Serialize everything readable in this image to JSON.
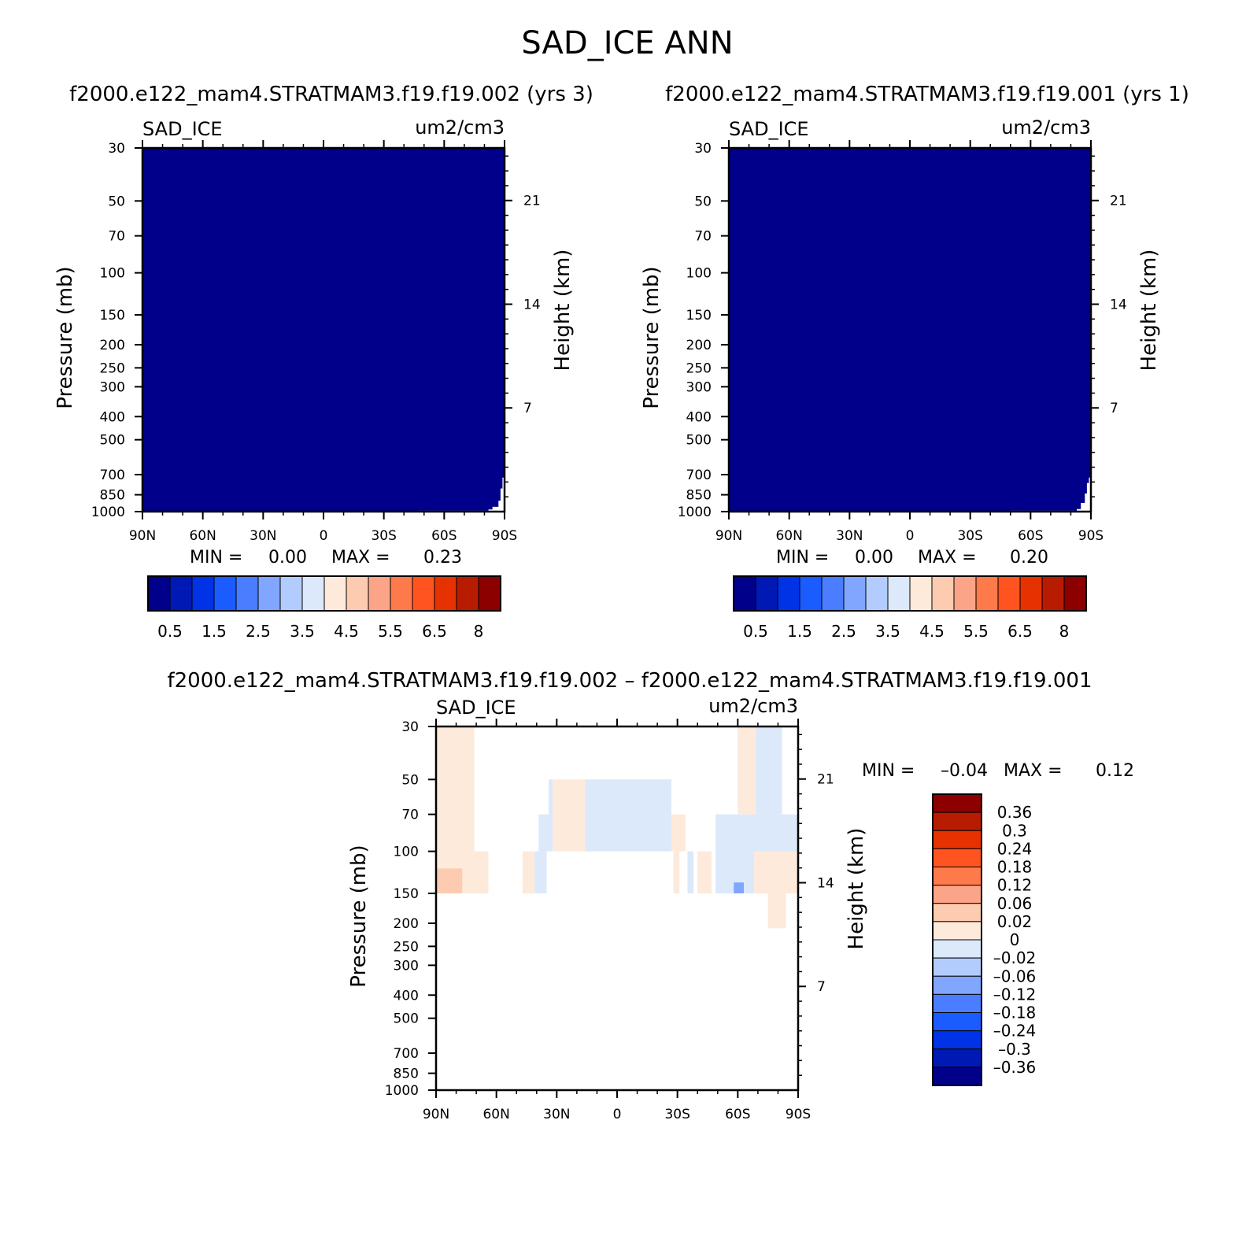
{
  "figure": {
    "title": "SAD_ICE ANN",
    "panel_titles": {
      "left": "f2000.e122_mam4.STRATMAM3.f19.f19.002 (yrs 3)",
      "right": "f2000.e122_mam4.STRATMAM3.f19.f19.001 (yrs 1)",
      "diff": "f2000.e122_mam4.STRATMAM3.f19.f19.002 – f2000.e122_mam4.STRATMAM3.f19.f19.001"
    }
  },
  "colors": {
    "abs_palette": [
      "#00008a",
      "#0019b5",
      "#0033e6",
      "#1a5cff",
      "#4a7dff",
      "#80a6ff",
      "#b3ccff",
      "#dbe9fb",
      "#fdeadb",
      "#fdcbb0",
      "#fca487",
      "#ff7a4a",
      "#ff5420",
      "#e63200",
      "#b81c00",
      "#8c0000"
    ],
    "diff_palette": [
      "#00008a",
      "#0019b5",
      "#0033e6",
      "#1a5cff",
      "#4a7dff",
      "#80a6ff",
      "#b3ccff",
      "#dbe9fb",
      "#fdeadb",
      "#fdcbb0",
      "#fca487",
      "#ff7a4a",
      "#ff5420",
      "#e63200",
      "#b81c00",
      "#8c0000"
    ]
  },
  "chart_data": [
    {
      "type": "heatmap",
      "id": "panel-left",
      "title": "f2000.e122_mam4.STRATMAM3.f19.f19.002 (yrs 3)",
      "label_left": "SAD_ICE",
      "label_right": "um2/cm3",
      "xlabel": "",
      "ylabel": "Pressure (mb)",
      "ylabel_right": "Height (km)",
      "x_ticks": [
        "90N",
        "60N",
        "30N",
        "0",
        "30S",
        "60S",
        "90S"
      ],
      "y_ticks": [
        30,
        50,
        70,
        100,
        150,
        200,
        250,
        300,
        400,
        500,
        700,
        850,
        1000
      ],
      "y_right_ticks": [
        21,
        14,
        7
      ],
      "ylim": [
        1000,
        30
      ],
      "y_scale": "log",
      "min_label": "MIN =",
      "min_value": "0.00",
      "max_label": "MAX =",
      "max_value": "0.23",
      "colorbar_labels": [
        "0.5",
        "1.5",
        "2.5",
        "3.5",
        "4.5",
        "5.5",
        "6.5",
        "8"
      ],
      "field_fill": "#00008a",
      "white_gap_boundary": [
        [
          47,
          1000
        ],
        [
          47,
          992
        ],
        [
          82,
          992
        ],
        [
          82,
          980
        ],
        [
          84,
          980
        ],
        [
          84,
          955
        ],
        [
          87,
          955
        ],
        [
          87,
          900
        ],
        [
          88,
          900
        ],
        [
          88,
          800
        ],
        [
          89,
          800
        ],
        [
          89,
          720
        ],
        [
          90,
          720
        ]
      ]
    },
    {
      "type": "heatmap",
      "id": "panel-right",
      "title": "f2000.e122_mam4.STRATMAM3.f19.f19.001 (yrs 1)",
      "label_left": "SAD_ICE",
      "label_right": "um2/cm3",
      "xlabel": "",
      "ylabel": "Pressure (mb)",
      "ylabel_right": "Height (km)",
      "x_ticks": [
        "90N",
        "60N",
        "30N",
        "0",
        "30S",
        "60S",
        "90S"
      ],
      "y_ticks": [
        30,
        50,
        70,
        100,
        150,
        200,
        250,
        300,
        400,
        500,
        700,
        850,
        1000
      ],
      "y_right_ticks": [
        21,
        14,
        7
      ],
      "ylim": [
        1000,
        30
      ],
      "y_scale": "log",
      "min_label": "MIN =",
      "min_value": "0.00",
      "max_label": "MAX =",
      "max_value": "0.20",
      "colorbar_labels": [
        "0.5",
        "1.5",
        "2.5",
        "3.5",
        "4.5",
        "5.5",
        "6.5",
        "8"
      ],
      "field_fill": "#00008a",
      "white_gap_boundary": [
        [
          50,
          1000
        ],
        [
          50,
          992
        ],
        [
          83,
          992
        ],
        [
          83,
          975
        ],
        [
          85,
          975
        ],
        [
          85,
          920
        ],
        [
          87,
          920
        ],
        [
          87,
          840
        ],
        [
          88,
          840
        ],
        [
          88,
          760
        ],
        [
          89,
          760
        ],
        [
          89,
          720
        ],
        [
          90,
          720
        ]
      ]
    },
    {
      "type": "heatmap",
      "id": "panel-diff",
      "title": "f2000.e122_mam4.STRATMAM3.f19.f19.002 – f2000.e122_mam4.STRATMAM3.f19.f19.001",
      "label_left": "SAD_ICE",
      "label_right": "um2/cm3",
      "xlabel": "",
      "ylabel": "Pressure (mb)",
      "ylabel_right": "Height (km)",
      "x_ticks": [
        "90N",
        "60N",
        "30N",
        "0",
        "30S",
        "60S",
        "90S"
      ],
      "y_ticks": [
        30,
        50,
        70,
        100,
        150,
        200,
        250,
        300,
        400,
        500,
        700,
        850,
        1000
      ],
      "y_right_ticks": [
        21,
        14,
        7
      ],
      "ylim": [
        1000,
        30
      ],
      "y_scale": "log",
      "min_label": "MIN =",
      "min_value": "–0.04",
      "max_label": "MAX =",
      "max_value": "0.12",
      "colorbar_labels": [
        "0.36",
        "0.3",
        "0.24",
        "0.18",
        "0.12",
        "0.06",
        "0.02",
        "0",
        "–0.02",
        "–0.06",
        "–0.12",
        "–0.18",
        "–0.24",
        "–0.3",
        "–0.36"
      ],
      "regions": [
        {
          "color": "#fdeadb",
          "lat": [
            -90,
            -71
          ],
          "p": [
            30,
            150
          ]
        },
        {
          "color": "#fdcbb0",
          "lat": [
            -90,
            -77
          ],
          "p": [
            118,
            150
          ]
        },
        {
          "color": "#fdeadb",
          "lat": [
            -71,
            -64
          ],
          "p": [
            100,
            150
          ]
        },
        {
          "color": "#fdeadb",
          "lat": [
            -47,
            -41
          ],
          "p": [
            100,
            150
          ]
        },
        {
          "color": "#dbe9fb",
          "lat": [
            -41,
            -35
          ],
          "p": [
            100,
            150
          ]
        },
        {
          "color": "#dbe9fb",
          "lat": [
            -39,
            -34
          ],
          "p": [
            70,
            100
          ]
        },
        {
          "color": "#dbe9fb",
          "lat": [
            -34,
            -32
          ],
          "p": [
            50,
            100
          ]
        },
        {
          "color": "#fdeadb",
          "lat": [
            -32,
            -16
          ],
          "p": [
            50,
            100
          ]
        },
        {
          "color": "#dbe9fb",
          "lat": [
            -16,
            27
          ],
          "p": [
            50,
            100
          ]
        },
        {
          "color": "#fdeadb",
          "lat": [
            27,
            34
          ],
          "p": [
            70,
            100
          ]
        },
        {
          "color": "#fdeadb",
          "lat": [
            28,
            31
          ],
          "p": [
            100,
            150
          ]
        },
        {
          "color": "#dbe9fb",
          "lat": [
            35,
            38
          ],
          "p": [
            100,
            150
          ]
        },
        {
          "color": "#fdeadb",
          "lat": [
            40,
            47
          ],
          "p": [
            100,
            150
          ]
        },
        {
          "color": "#dbe9fb",
          "lat": [
            49,
            90
          ],
          "p": [
            70,
            150
          ]
        },
        {
          "color": "#dbe9fb",
          "lat": [
            60,
            82
          ],
          "p": [
            30,
            70
          ]
        },
        {
          "color": "#fdeadb",
          "lat": [
            60,
            69
          ],
          "p": [
            30,
            70
          ]
        },
        {
          "color": "#fdeadb",
          "lat": [
            68,
            90
          ],
          "p": [
            100,
            150
          ]
        },
        {
          "color": "#fdeadb",
          "lat": [
            75,
            84
          ],
          "p": [
            150,
            210
          ]
        },
        {
          "color": "#80a6ff",
          "lat": [
            58,
            63
          ],
          "p": [
            135,
            150
          ]
        }
      ]
    }
  ]
}
